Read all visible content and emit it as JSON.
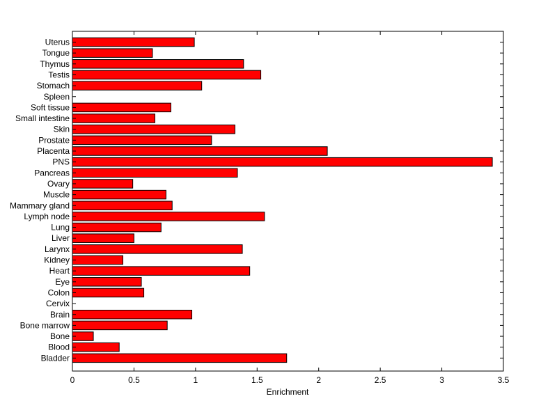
{
  "chart_data": {
    "type": "bar",
    "orientation": "horizontal",
    "title": "",
    "xlabel": "Enrichment",
    "ylabel": "",
    "xlim": [
      0,
      3.5
    ],
    "xticks": [
      0,
      0.5,
      1,
      1.5,
      2,
      2.5,
      3,
      3.5
    ],
    "xtick_labels": [
      "0",
      "0.5",
      "1",
      "1.5",
      "2",
      "2.5",
      "3",
      "3.5"
    ],
    "grid": false,
    "legend": "none",
    "bar_color": "#ff0000",
    "edge_color": "#000000",
    "categories": [
      "Uterus",
      "Tongue",
      "Thymus",
      "Testis",
      "Stomach",
      "Spleen",
      "Soft tissue",
      "Small intestine",
      "Skin",
      "Prostate",
      "Placenta",
      "PNS",
      "Pancreas",
      "Ovary",
      "Muscle",
      "Mammary gland",
      "Lymph node",
      "Lung",
      "Liver",
      "Larynx",
      "Kidney",
      "Heart",
      "Eye",
      "Colon",
      "Cervix",
      "Brain",
      "Bone marrow",
      "Bone",
      "Blood",
      "Bladder"
    ],
    "values": [
      0.99,
      0.65,
      1.39,
      1.53,
      1.05,
      0,
      0.8,
      0.67,
      1.32,
      1.13,
      2.07,
      3.41,
      1.34,
      0.49,
      0.76,
      0.81,
      1.56,
      0.72,
      0.5,
      1.38,
      0.41,
      1.44,
      0.56,
      0.58,
      0,
      0.97,
      0.77,
      0.17,
      0.38,
      1.74
    ]
  }
}
